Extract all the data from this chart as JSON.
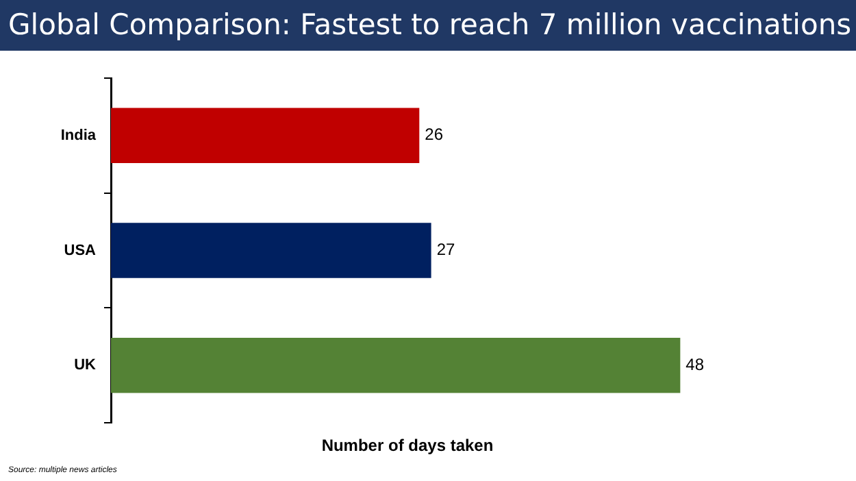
{
  "chart_data": {
    "type": "bar",
    "orientation": "horizontal",
    "title": "Global Comparison: Fastest to reach 7 million vaccinations",
    "categories": [
      "India",
      "USA",
      "UK"
    ],
    "values": [
      26,
      27,
      48
    ],
    "colors": [
      "#c00000",
      "#002060",
      "#548235"
    ],
    "xlabel": "Number of days taken",
    "data_labels": true,
    "grid": false,
    "legend": false,
    "annotations": [
      "Source: multiple news articles"
    ]
  }
}
